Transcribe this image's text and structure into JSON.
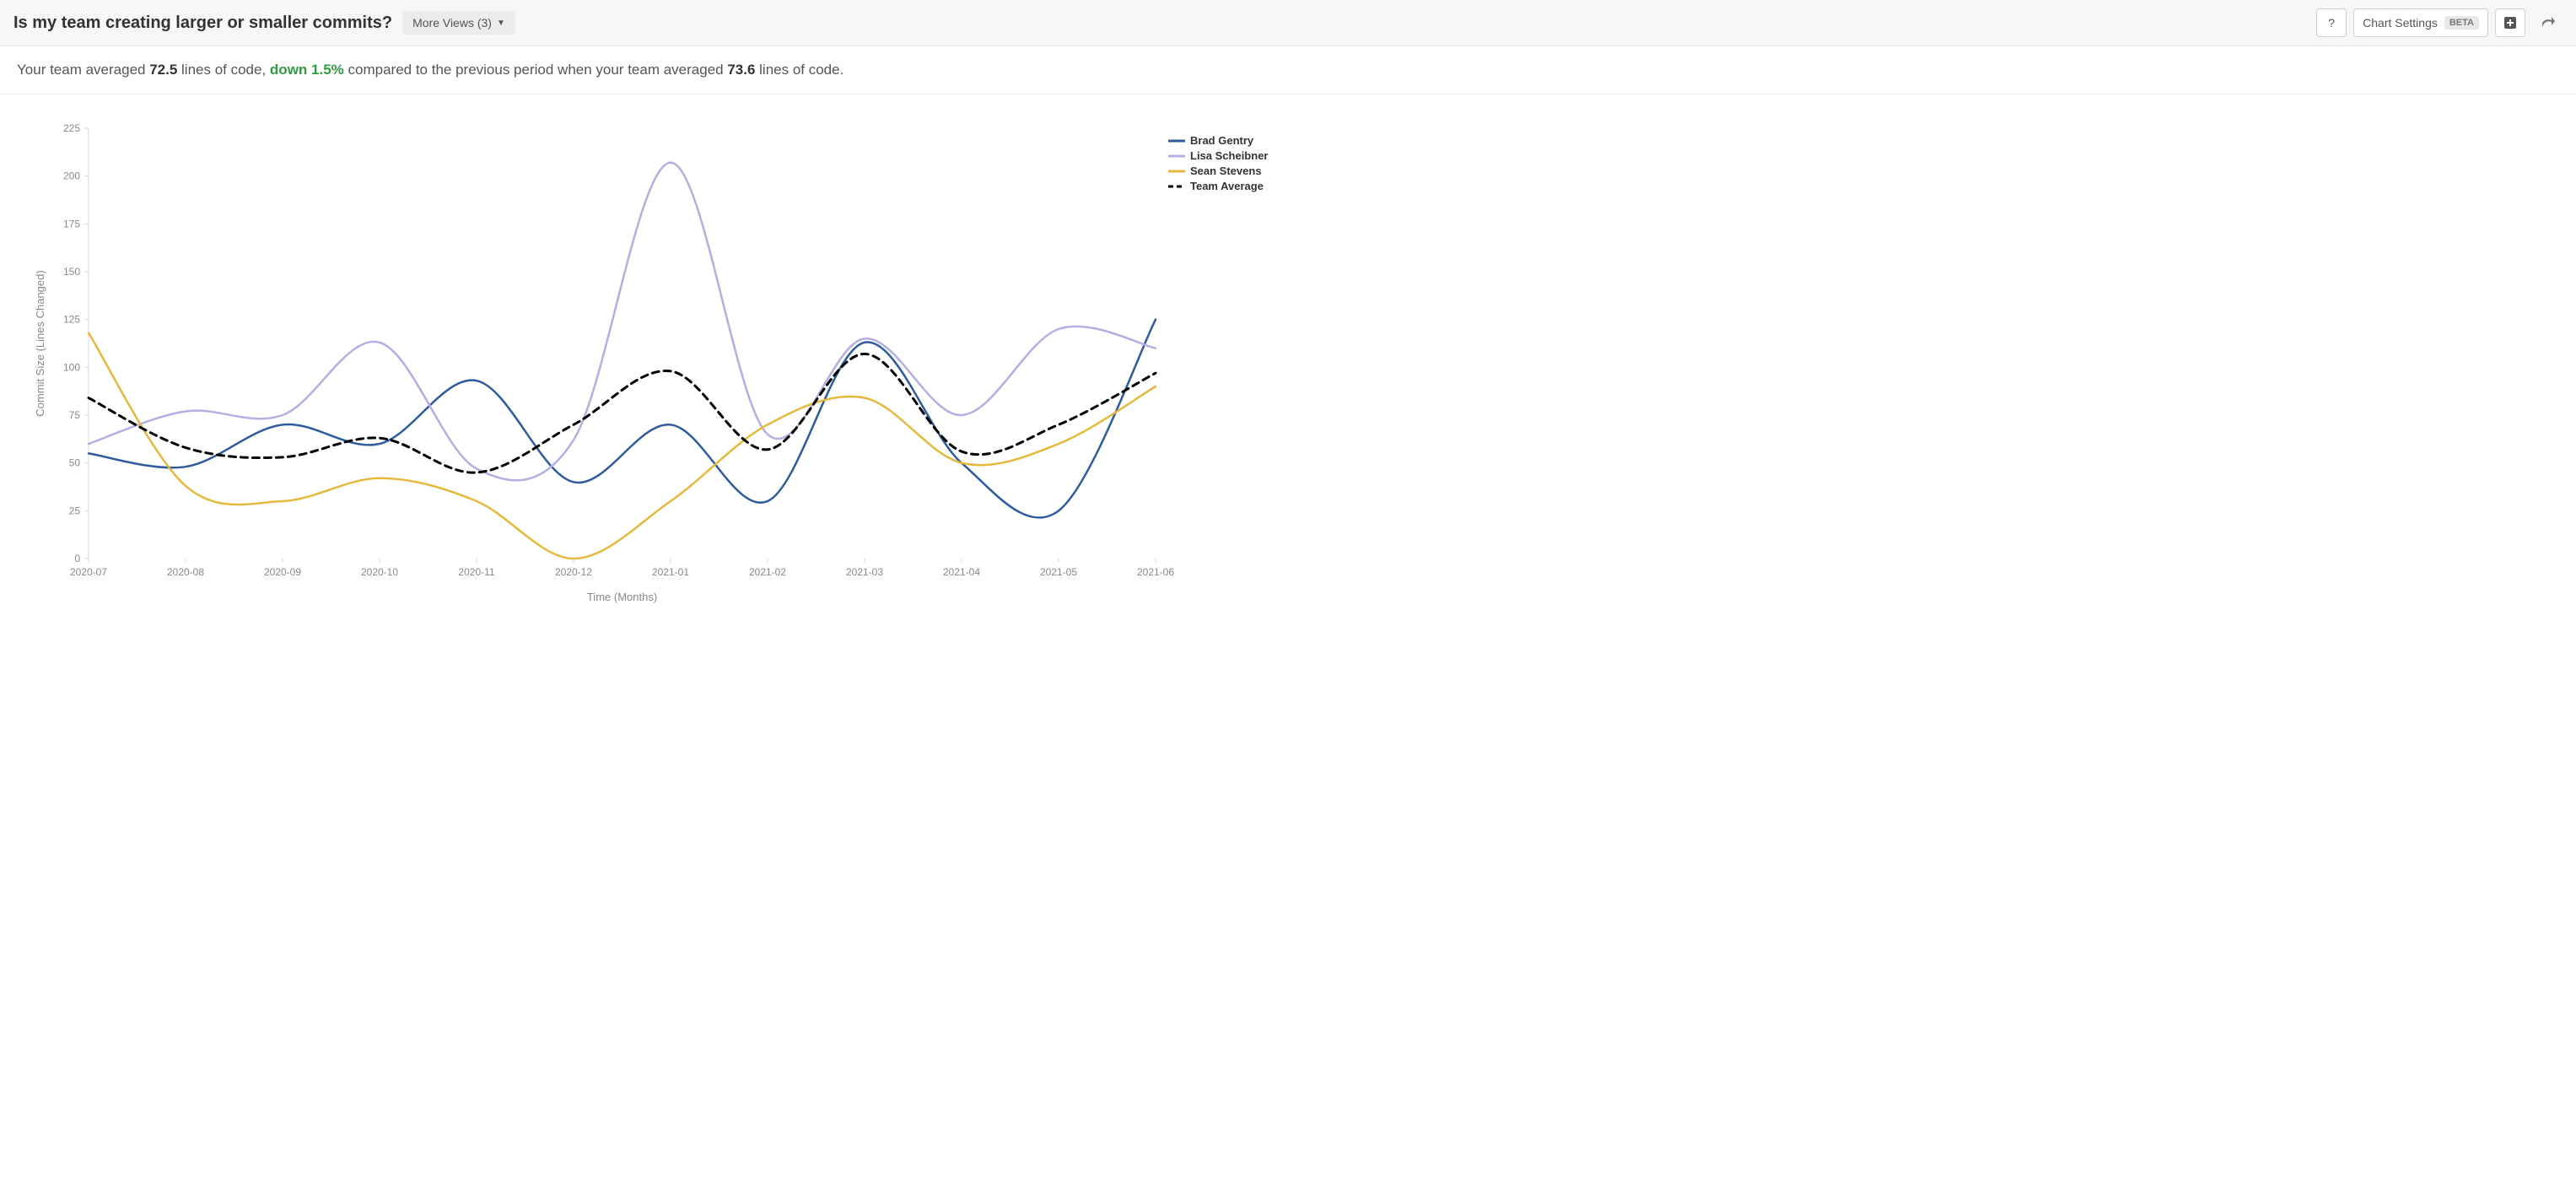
{
  "header": {
    "title": "Is my team creating larger or smaller commits?",
    "more_views_label": "More Views (3)",
    "help_label": "?",
    "settings_label": "Chart Settings",
    "beta_label": "BETA"
  },
  "summary": {
    "prefix": "Your team averaged ",
    "avg_current": "72.5",
    "mid1": " lines of code, ",
    "delta": "down 1.5%",
    "mid2": " compared to the previous period when your team averaged ",
    "avg_previous": "73.6",
    "suffix": " lines of code."
  },
  "chart": {
    "type": "line",
    "xlabel": "Time (Months)",
    "ylabel": "Commit Size (Lines Changed)",
    "background_color": "#ffffff",
    "grid_color": "#e0e0e0",
    "axis_color": "#d8d8d8",
    "text_color": "#888888",
    "ylim": [
      0,
      225
    ],
    "ytick_step": 25,
    "x_categories": [
      "2020-07",
      "2020-08",
      "2020-09",
      "2020-10",
      "2020-11",
      "2020-12",
      "2021-01",
      "2021-02",
      "2021-03",
      "2021-04",
      "2021-05",
      "2021-06"
    ],
    "series": [
      {
        "name": "Brad Gentry",
        "color": "#2e5b9e",
        "width": 2.5,
        "dash": null,
        "values": [
          55,
          48,
          70,
          60,
          93,
          40,
          70,
          30,
          113,
          50,
          25,
          125
        ]
      },
      {
        "name": "Lisa Scheibner",
        "color": "#b3aee3",
        "width": 2.5,
        "dash": null,
        "values": [
          60,
          77,
          75,
          113,
          47,
          62,
          207,
          65,
          115,
          75,
          120,
          110
        ]
      },
      {
        "name": "Sean Stevens",
        "color": "#e5b93c",
        "width": 2.5,
        "dash": null,
        "values": [
          118,
          38,
          30,
          42,
          30,
          0,
          30,
          70,
          84,
          50,
          60,
          90
        ]
      },
      {
        "name": "Team Average",
        "color": "#000000",
        "width": 3,
        "dash": "8,6",
        "values": [
          84,
          58,
          53,
          63,
          45,
          70,
          98,
          57,
          107,
          56,
          70,
          97
        ]
      }
    ],
    "label_fontsize": 13,
    "tick_fontsize": 12,
    "legend_fontsize": 13,
    "legend_position": "top-right"
  }
}
